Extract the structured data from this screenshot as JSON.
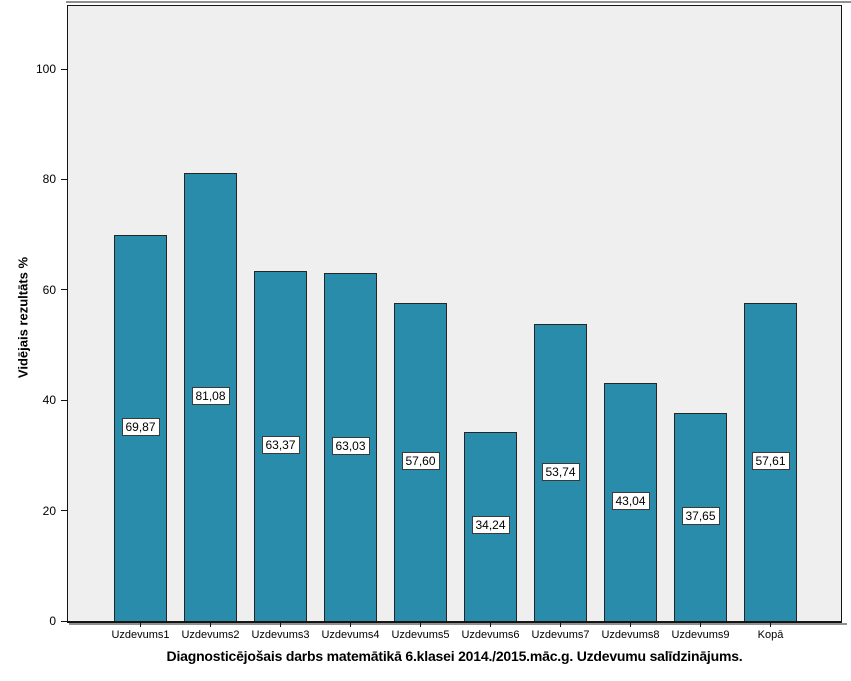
{
  "figure": {
    "background": "#ffffff",
    "plot_background": "#efefef",
    "frame_color": "#141414",
    "shadow_color": "#909090"
  },
  "chart_data": {
    "type": "bar",
    "title": "Diagnosticējošais darbs matemātikā 6.klasei 2014./2015.māc.g. Uzdevumu salīdzinājums.",
    "xlabel": "",
    "ylabel": "Vidējais rezultāts %",
    "categories": [
      "Uzdevums1",
      "Uzdevums2",
      "Uzdevums3",
      "Uzdevums4",
      "Uzdevums5",
      "Uzdevums6",
      "Uzdevums7",
      "Uzdevums8",
      "Uzdevums9",
      "Kopā"
    ],
    "values": [
      69.87,
      81.08,
      63.37,
      63.03,
      57.6,
      34.24,
      53.74,
      43.04,
      37.65,
      57.61
    ],
    "value_labels": [
      "69,87",
      "81,08",
      "63,37",
      "63,03",
      "57,60",
      "34,24",
      "53,74",
      "43,04",
      "37,65",
      "57,61"
    ],
    "y_ticks": [
      0,
      20,
      40,
      60,
      80,
      100
    ],
    "ylim": [
      0,
      111.5
    ],
    "grid": false,
    "legend": null,
    "bar_color": "#288caa",
    "bar_border_color": "#262626",
    "value_label_box": true
  }
}
